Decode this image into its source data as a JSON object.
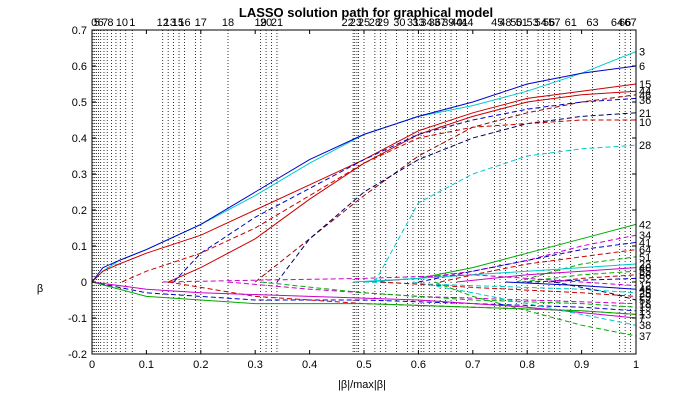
{
  "chart_data": {
    "type": "line",
    "title": "LASSO solution path for graphical model",
    "xlabel": "|β|/max|β|",
    "ylabel": "β",
    "xlim": [
      0,
      1
    ],
    "ylim": [
      -0.2,
      0.7
    ],
    "xticks": [
      "0",
      "0.1",
      "0.2",
      "0.3",
      "0.4",
      "0.5",
      "0.6",
      "0.7",
      "0.8",
      "0.9",
      "1"
    ],
    "yticks": [
      "-0.2",
      "-0.1",
      "0",
      "0.1",
      "0.2",
      "0.3",
      "0.4",
      "0.5",
      "0.6",
      "0.7"
    ],
    "grid": false,
    "legend": "none",
    "entry_markers": {
      "style": "dotted vertical lines",
      "x": [
        0.002,
        0.005,
        0.008,
        0.012,
        0.016,
        0.022,
        0.028,
        0.036,
        0.044,
        0.052,
        0.062,
        0.074,
        0.13,
        0.14,
        0.15,
        0.16,
        0.17,
        0.19,
        0.2,
        0.25,
        0.31,
        0.32,
        0.33,
        0.34,
        0.48,
        0.483,
        0.487,
        0.49,
        0.5,
        0.52,
        0.53,
        0.54,
        0.56,
        0.58,
        0.59,
        0.6,
        0.605,
        0.61,
        0.62,
        0.63,
        0.64,
        0.65,
        0.66,
        0.67,
        0.69,
        0.74,
        0.75,
        0.76,
        0.78,
        0.79,
        0.8,
        0.82,
        0.83,
        0.84,
        0.85,
        0.86,
        0.88,
        0.92,
        0.97,
        0.98,
        0.99
      ]
    },
    "top_labels": [
      {
        "text": "0",
        "x": 0.004
      },
      {
        "text": "5",
        "x": 0.009
      },
      {
        "text": "6",
        "x": 0.016
      },
      {
        "text": "7",
        "x": 0.024
      },
      {
        "text": "8",
        "x": 0.034
      },
      {
        "text": "10",
        "x": 0.055
      },
      {
        "text": "1",
        "x": 0.074
      },
      {
        "text": "12",
        "x": 0.13
      },
      {
        "text": "13",
        "x": 0.143
      },
      {
        "text": "15",
        "x": 0.158
      },
      {
        "text": "16",
        "x": 0.17
      },
      {
        "text": "17",
        "x": 0.2
      },
      {
        "text": "18",
        "x": 0.25
      },
      {
        "text": "19",
        "x": 0.31
      },
      {
        "text": "20",
        "x": 0.32
      },
      {
        "text": "21",
        "x": 0.34
      },
      {
        "text": "22",
        "x": 0.47
      },
      {
        "text": "23",
        "x": 0.485
      },
      {
        "text": "25",
        "x": 0.5
      },
      {
        "text": "28",
        "x": 0.52
      },
      {
        "text": "29",
        "x": 0.535
      },
      {
        "text": "30",
        "x": 0.565
      },
      {
        "text": "31",
        "x": 0.59
      },
      {
        "text": "33",
        "x": 0.6
      },
      {
        "text": "34",
        "x": 0.615
      },
      {
        "text": "36",
        "x": 0.63
      },
      {
        "text": "37",
        "x": 0.64
      },
      {
        "text": "39",
        "x": 0.655
      },
      {
        "text": "40",
        "x": 0.67
      },
      {
        "text": "41",
        "x": 0.68
      },
      {
        "text": "44",
        "x": 0.69
      },
      {
        "text": "45",
        "x": 0.745
      },
      {
        "text": "48",
        "x": 0.76
      },
      {
        "text": "50",
        "x": 0.78
      },
      {
        "text": "51",
        "x": 0.79
      },
      {
        "text": "53",
        "x": 0.81
      },
      {
        "text": "54",
        "x": 0.825
      },
      {
        "text": "56",
        "x": 0.84
      },
      {
        "text": "57",
        "x": 0.85
      },
      {
        "text": "61",
        "x": 0.88
      },
      {
        "text": "63",
        "x": 0.92
      },
      {
        "text": "64",
        "x": 0.965
      },
      {
        "text": "66",
        "x": 0.98
      },
      {
        "text": "67",
        "x": 0.99
      }
    ],
    "series": [
      {
        "label": "3",
        "color": "#00cccc",
        "dash": "solid",
        "x": [
          0,
          0.02,
          0.05,
          0.1,
          0.2,
          0.3,
          0.4,
          0.5,
          0.6,
          0.7,
          0.8,
          0.9,
          1.0
        ],
        "y": [
          0,
          0.03,
          0.06,
          0.09,
          0.16,
          0.24,
          0.33,
          0.41,
          0.46,
          0.49,
          0.53,
          0.58,
          0.64
        ]
      },
      {
        "label": "6",
        "color": "#0000cc",
        "dash": "solid",
        "x": [
          0,
          0.02,
          0.05,
          0.1,
          0.2,
          0.3,
          0.4,
          0.5,
          0.6,
          0.7,
          0.8,
          0.9,
          1.0
        ],
        "y": [
          0,
          0.04,
          0.06,
          0.09,
          0.16,
          0.25,
          0.34,
          0.41,
          0.46,
          0.5,
          0.55,
          0.58,
          0.6
        ]
      },
      {
        "label": "15",
        "color": "#cc0000",
        "dash": "solid",
        "x": [
          0,
          0.02,
          0.05,
          0.1,
          0.2,
          0.3,
          0.4,
          0.5,
          0.6,
          0.7,
          0.8,
          0.9,
          1.0
        ],
        "y": [
          0,
          0.03,
          0.05,
          0.08,
          0.13,
          0.2,
          0.27,
          0.34,
          0.42,
          0.47,
          0.51,
          0.53,
          0.55
        ]
      },
      {
        "label": "44",
        "color": "#cc0000",
        "dash": "solid",
        "x": [
          0.14,
          0.2,
          0.3,
          0.4,
          0.5,
          0.6,
          0.7,
          0.8,
          0.9,
          1.0
        ],
        "y": [
          0,
          0.04,
          0.12,
          0.23,
          0.33,
          0.41,
          0.46,
          0.5,
          0.52,
          0.53
        ]
      },
      {
        "label": "46",
        "color": "#990000",
        "dash": "dashed",
        "x": [
          0.3,
          0.4,
          0.5,
          0.6,
          0.7,
          0.8,
          0.9,
          1.0
        ],
        "y": [
          0,
          0.12,
          0.24,
          0.35,
          0.43,
          0.47,
          0.5,
          0.52
        ]
      },
      {
        "label": "36",
        "color": "#0000cc",
        "dash": "dashed",
        "x": [
          0.15,
          0.2,
          0.3,
          0.4,
          0.5,
          0.6,
          0.7,
          0.8,
          0.9,
          1.0
        ],
        "y": [
          0,
          0.08,
          0.18,
          0.26,
          0.34,
          0.41,
          0.45,
          0.48,
          0.5,
          0.51
        ]
      },
      {
        "label": "21",
        "color": "#000066",
        "dash": "dashed",
        "x": [
          0.34,
          0.4,
          0.5,
          0.6,
          0.7,
          0.8,
          0.9,
          1.0
        ],
        "y": [
          0,
          0.12,
          0.25,
          0.34,
          0.4,
          0.44,
          0.46,
          0.47
        ]
      },
      {
        "label": "10",
        "color": "#cc0000",
        "dash": "dashed",
        "x": [
          0.055,
          0.1,
          0.2,
          0.3,
          0.4,
          0.5,
          0.6,
          0.7,
          0.8,
          0.9,
          1.0
        ],
        "y": [
          0,
          0.03,
          0.08,
          0.15,
          0.24,
          0.33,
          0.4,
          0.43,
          0.44,
          0.45,
          0.45
        ]
      },
      {
        "label": "28",
        "color": "#00cccc",
        "dash": "dashed",
        "x": [
          0.52,
          0.6,
          0.7,
          0.8,
          0.9,
          1.0
        ],
        "y": [
          0,
          0.22,
          0.3,
          0.35,
          0.37,
          0.38
        ]
      },
      {
        "label": "42",
        "color": "#00aa00",
        "dash": "solid",
        "x": [
          0.5,
          0.6,
          0.7,
          0.8,
          0.9,
          1.0
        ],
        "y": [
          0,
          0.01,
          0.04,
          0.08,
          0.12,
          0.16
        ]
      },
      {
        "label": "34",
        "color": "#cc00cc",
        "dash": "dashed",
        "x": [
          0.5,
          0.6,
          0.7,
          0.8,
          0.9,
          1.0
        ],
        "y": [
          0,
          0.01,
          0.03,
          0.06,
          0.1,
          0.13
        ]
      },
      {
        "label": "41",
        "color": "#0000cc",
        "dash": "dashed",
        "x": [
          0.6,
          0.7,
          0.8,
          0.9,
          1.0
        ],
        "y": [
          0,
          0.03,
          0.06,
          0.09,
          0.11
        ]
      },
      {
        "label": "64",
        "color": "#cc0000",
        "dash": "dashed",
        "x": [
          0.64,
          0.7,
          0.8,
          0.9,
          1.0
        ],
        "y": [
          0,
          0.02,
          0.05,
          0.07,
          0.09
        ]
      },
      {
        "label": "51",
        "color": "#00aa00",
        "dash": "dashed",
        "x": [
          0.78,
          0.85,
          0.9,
          1.0
        ],
        "y": [
          0,
          0.03,
          0.05,
          0.07
        ]
      },
      {
        "label": "23",
        "color": "#00cccc",
        "dash": "solid",
        "x": [
          0.48,
          0.6,
          0.7,
          0.8,
          0.9,
          1.0
        ],
        "y": [
          0,
          0.01,
          0.02,
          0.03,
          0.04,
          0.05
        ]
      },
      {
        "label": "40",
        "color": "#cc00cc",
        "dash": "solid",
        "x": [
          0.67,
          0.8,
          0.9,
          1.0
        ],
        "y": [
          0,
          0.02,
          0.03,
          0.04
        ]
      },
      {
        "label": "55",
        "color": "#00aa00",
        "dash": "dashed",
        "x": [
          0.79,
          0.9,
          1.0
        ],
        "y": [
          0,
          0.02,
          0.03
        ]
      },
      {
        "label": "56",
        "color": "#cc0000",
        "dash": "dashed",
        "x": [
          0.84,
          0.9,
          1.0
        ],
        "y": [
          0,
          0.01,
          0.02
        ]
      },
      {
        "label": "52",
        "color": "#0000cc",
        "dash": "dashed",
        "x": [
          0.8,
          0.9,
          1.0
        ],
        "y": [
          0,
          0.005,
          0.01
        ]
      },
      {
        "label": "12",
        "color": "#cc00cc",
        "dash": "dashed",
        "x": [
          0.13,
          0.3,
          0.5,
          0.7,
          0.8,
          0.9,
          1.0
        ],
        "y": [
          0,
          0.005,
          0.01,
          0.02,
          0.01,
          0.0,
          -0.01
        ]
      },
      {
        "label": "48",
        "color": "#0000cc",
        "dash": "solid",
        "x": [
          0.76,
          0.9,
          1.0
        ],
        "y": [
          0,
          -0.01,
          -0.02
        ]
      },
      {
        "label": "25",
        "color": "#00cccc",
        "dash": "dashed",
        "x": [
          0.5,
          0.7,
          0.9,
          1.0
        ],
        "y": [
          0,
          -0.01,
          -0.02,
          -0.03
        ]
      },
      {
        "label": "29",
        "color": "#cc0000",
        "dash": "dashed",
        "x": [
          0.53,
          0.7,
          0.9,
          1.0
        ],
        "y": [
          0,
          -0.015,
          -0.03,
          -0.04
        ]
      },
      {
        "label": "57",
        "color": "#000066",
        "dash": "dashed",
        "x": [
          0.85,
          0.95,
          1.0
        ],
        "y": [
          0,
          -0.03,
          -0.05
        ]
      },
      {
        "label": "18",
        "color": "#cc00cc",
        "dash": "dashed",
        "x": [
          0.25,
          0.4,
          0.6,
          0.8,
          1.0
        ],
        "y": [
          0,
          -0.02,
          -0.04,
          -0.05,
          -0.06
        ]
      },
      {
        "label": "19",
        "color": "#00aa00",
        "dash": "dashed",
        "x": [
          0.31,
          0.5,
          0.7,
          0.9,
          1.0
        ],
        "y": [
          0,
          -0.03,
          -0.05,
          -0.06,
          -0.07
        ]
      },
      {
        "label": "1",
        "color": "#0000cc",
        "dash": "dashed",
        "x": [
          0,
          0.1,
          0.3,
          0.5,
          0.7,
          0.9,
          1.0
        ],
        "y": [
          0,
          -0.03,
          -0.05,
          -0.05,
          -0.06,
          -0.07,
          -0.08
        ]
      },
      {
        "label": "13",
        "color": "#cc0000",
        "dash": "dashed",
        "x": [
          0.14,
          0.3,
          0.5,
          0.7,
          0.9,
          1.0
        ],
        "y": [
          0,
          -0.04,
          -0.06,
          -0.07,
          -0.08,
          -0.09
        ]
      },
      {
        "label": "7",
        "color": "#cc00cc",
        "dash": "solid",
        "x": [
          0,
          0.1,
          0.2,
          0.4,
          0.6,
          0.8,
          1.0
        ],
        "y": [
          0,
          -0.02,
          -0.03,
          -0.04,
          -0.05,
          -0.07,
          -0.1
        ]
      },
      {
        "label": "35",
        "color": "#00aa00",
        "dash": "solid",
        "x": [
          0,
          0.1,
          0.3,
          0.5,
          0.7,
          0.9,
          1.0
        ],
        "y": [
          0,
          -0.04,
          -0.06,
          -0.06,
          -0.07,
          -0.08,
          -0.09
        ]
      },
      {
        "label": "38",
        "color": "#00cccc",
        "dash": "dashed",
        "x": [
          0.59,
          0.7,
          0.8,
          0.9,
          1.0
        ],
        "y": [
          0,
          -0.03,
          -0.06,
          -0.09,
          -0.12
        ]
      },
      {
        "label": "37",
        "color": "#00aa00",
        "dash": "dashed",
        "x": [
          0.63,
          0.7,
          0.8,
          0.9,
          1.0
        ],
        "y": [
          0,
          -0.04,
          -0.08,
          -0.12,
          -0.15
        ]
      }
    ],
    "right_labels": [
      {
        "text": "3",
        "y": 0.64
      },
      {
        "text": "6",
        "y": 0.6
      },
      {
        "text": "15",
        "y": 0.55
      },
      {
        "text": "44",
        "y": 0.53
      },
      {
        "text": "46",
        "y": 0.52
      },
      {
        "text": "36",
        "y": 0.505
      },
      {
        "text": "21",
        "y": 0.47
      },
      {
        "text": "10",
        "y": 0.445
      },
      {
        "text": "28",
        "y": 0.38
      },
      {
        "text": "42",
        "y": 0.16
      },
      {
        "text": "34",
        "y": 0.13
      },
      {
        "text": "41",
        "y": 0.11
      },
      {
        "text": "64",
        "y": 0.09
      },
      {
        "text": "51",
        "y": 0.07
      },
      {
        "text": "23",
        "y": 0.05
      },
      {
        "text": "40",
        "y": 0.04
      },
      {
        "text": "55",
        "y": 0.03
      },
      {
        "text": "56",
        "y": 0.02
      },
      {
        "text": "52",
        "y": 0.01
      },
      {
        "text": "12",
        "y": -0.01
      },
      {
        "text": "48",
        "y": -0.02
      },
      {
        "text": "25",
        "y": -0.03
      },
      {
        "text": "29",
        "y": -0.04
      },
      {
        "text": "57",
        "y": -0.05
      },
      {
        "text": "18",
        "y": -0.06
      },
      {
        "text": "19",
        "y": -0.07
      },
      {
        "text": "1",
        "y": -0.08
      },
      {
        "text": "13",
        "y": -0.09
      },
      {
        "text": "7",
        "y": -0.1
      },
      {
        "text": "38",
        "y": -0.12
      },
      {
        "text": "37",
        "y": -0.15
      }
    ]
  }
}
